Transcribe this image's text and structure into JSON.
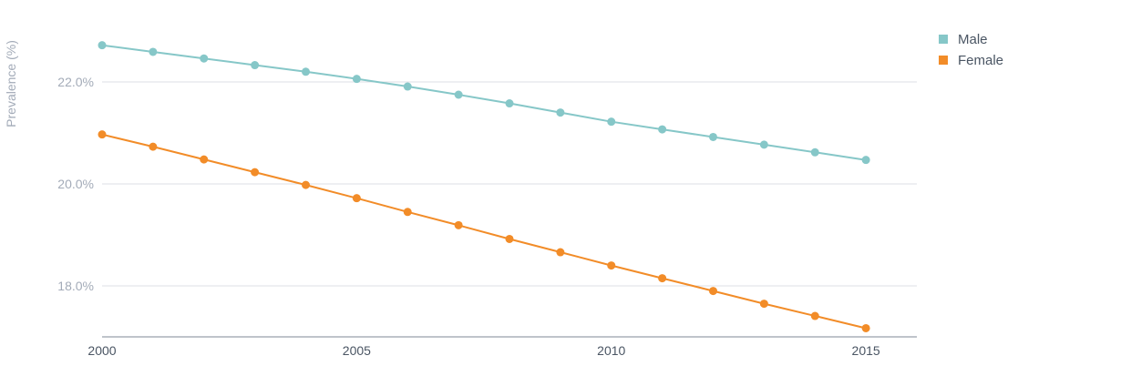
{
  "chart_data": {
    "type": "line",
    "title": "",
    "xlabel": "",
    "ylabel": "Prevalence (%)",
    "x": [
      2000,
      2001,
      2002,
      2003,
      2004,
      2005,
      2006,
      2007,
      2008,
      2009,
      2010,
      2011,
      2012,
      2013,
      2014,
      2015
    ],
    "xticks": [
      2000,
      2005,
      2010,
      2015
    ],
    "xtick_labels": [
      "2000",
      "2005",
      "2010",
      "2015"
    ],
    "xlim": [
      2000,
      2016.0
    ],
    "yticks": [
      18.0,
      20.0,
      22.0
    ],
    "ytick_labels": [
      "18.0%",
      "20.0%",
      "22.0%"
    ],
    "ylim": [
      17.0,
      23.0
    ],
    "grid": "horizontal",
    "legend_position": "top-right",
    "series": [
      {
        "name": "Male",
        "color": "#86c7c8",
        "values": [
          22.72,
          22.59,
          22.46,
          22.33,
          22.2,
          22.06,
          21.91,
          21.75,
          21.58,
          21.4,
          21.22,
          21.07,
          20.92,
          20.77,
          20.62,
          20.47
        ]
      },
      {
        "name": "Female",
        "color": "#f28c28",
        "values": [
          20.97,
          20.73,
          20.48,
          20.23,
          19.98,
          19.72,
          19.45,
          19.19,
          18.92,
          18.66,
          18.4,
          18.15,
          17.9,
          17.65,
          17.41,
          17.17
        ]
      }
    ]
  }
}
